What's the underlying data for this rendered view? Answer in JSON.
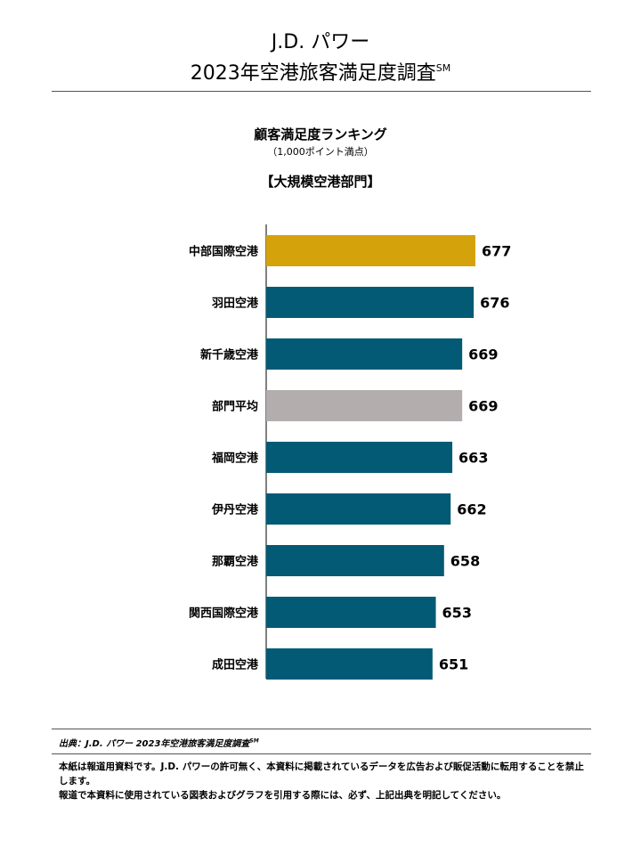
{
  "header": {
    "line1": "J.D. パワー",
    "line2": "2023年空港旅客満足度調査",
    "line2_mark": "SM"
  },
  "chart_data": {
    "type": "bar",
    "orientation": "horizontal",
    "title": "顧客満足度ランキング",
    "subtitle": "（1,000ポイント満点）",
    "category_label": "【大規模空港部門】",
    "categories": [
      "中部国際空港",
      "羽田空港",
      "新千歳空港",
      "部門平均",
      "福岡空港",
      "伊丹空港",
      "那覇空港",
      "関西国際空港",
      "成田空港"
    ],
    "values": [
      677,
      676,
      669,
      669,
      663,
      662,
      658,
      653,
      651
    ],
    "value_labels": [
      "677",
      "676",
      "669",
      "669",
      "663",
      "662",
      "658",
      "653",
      "651"
    ],
    "bar_colors": [
      "#d4a20a",
      "#035a75",
      "#035a75",
      "#b3adae",
      "#035a75",
      "#035a75",
      "#035a75",
      "#035a75",
      "#035a75"
    ],
    "xlim": [
      550,
      680
    ],
    "grid": false,
    "legend": "none"
  },
  "footer": {
    "source": "出典：J.D. パワー 2023年空港旅客満足度調査",
    "source_mark": "SM",
    "notice_1": "本紙は報道用資料です。J.D. パワーの許可無く、本資料に掲載されているデータを広告および販促活動に転用することを禁止します。",
    "notice_2": "報道で本資料に使用されている図表およびグラフを引用する際には、必ず、上記出典を明記してください。"
  }
}
